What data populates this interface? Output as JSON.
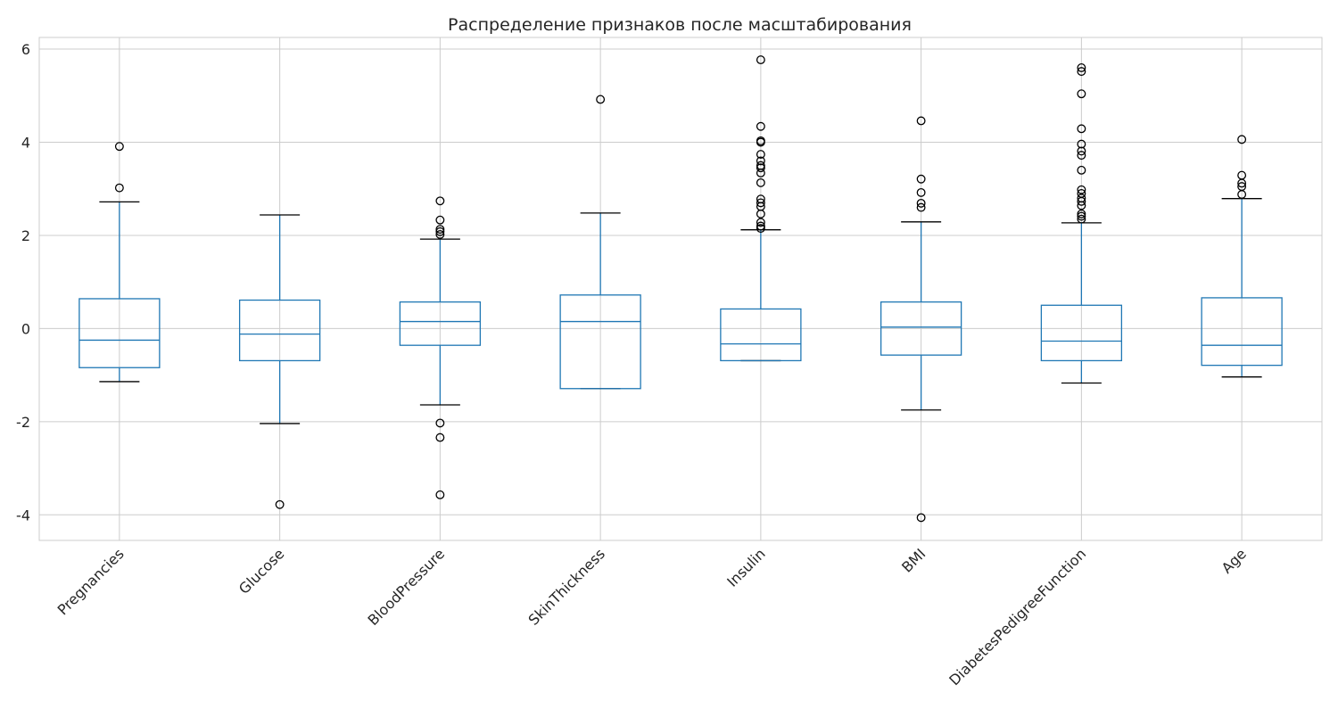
{
  "chart_data": {
    "type": "box",
    "title": "Распределение признаков после масштабирования",
    "xlabel": "",
    "ylabel": "",
    "ylim": [
      -4.55,
      6.25
    ],
    "yticks": [
      -4,
      -2,
      0,
      2,
      4,
      6
    ],
    "ytick_labels": [
      "-4",
      "-2",
      "0",
      "2",
      "4",
      "6"
    ],
    "grid": true,
    "categories": [
      "Pregnancies",
      "Glucose",
      "BloodPressure",
      "SkinThickness",
      "Insulin",
      "BMI",
      "DiabetesPedigreeFunction",
      "Age"
    ],
    "boxes": [
      {
        "name": "Pregnancies",
        "whisker_low": -1.14,
        "q1": -0.84,
        "median": -0.25,
        "q3": 0.64,
        "whisker_high": 2.72,
        "outliers": [
          3.02,
          3.91
        ]
      },
      {
        "name": "Glucose",
        "whisker_low": -2.04,
        "q1": -0.69,
        "median": -0.12,
        "q3": 0.61,
        "whisker_high": 2.44,
        "outliers": [
          -3.78
        ]
      },
      {
        "name": "BloodPressure",
        "whisker_low": -1.64,
        "q1": -0.36,
        "median": 0.15,
        "q3": 0.57,
        "whisker_high": 1.92,
        "outliers": [
          2.02,
          2.08,
          2.13,
          2.33,
          2.74,
          -2.03,
          -2.34,
          -3.57
        ]
      },
      {
        "name": "SkinThickness",
        "whisker_low": -1.29,
        "q1": -1.29,
        "median": 0.15,
        "q3": 0.72,
        "whisker_high": 2.48,
        "outliers": [
          4.92
        ]
      },
      {
        "name": "Insulin",
        "whisker_low": -0.69,
        "q1": -0.69,
        "median": -0.33,
        "q3": 0.42,
        "whisker_high": 2.12,
        "outliers": [
          2.15,
          2.2,
          2.28,
          2.46,
          2.62,
          2.7,
          2.78,
          3.13,
          3.34,
          3.45,
          3.5,
          3.6,
          3.74,
          4.0,
          4.03,
          4.34,
          5.77
        ]
      },
      {
        "name": "BMI",
        "whisker_low": -1.75,
        "q1": -0.57,
        "median": 0.03,
        "q3": 0.57,
        "whisker_high": 2.29,
        "outliers": [
          2.6,
          2.69,
          2.92,
          3.21,
          4.46,
          -4.06
        ]
      },
      {
        "name": "DiabetesPedigreeFunction",
        "whisker_low": -1.17,
        "q1": -0.69,
        "median": -0.27,
        "q3": 0.5,
        "whisker_high": 2.27,
        "outliers": [
          2.35,
          2.41,
          2.46,
          2.64,
          2.73,
          2.8,
          2.9,
          2.98,
          3.4,
          3.72,
          3.81,
          3.96,
          4.29,
          5.04,
          5.52,
          5.6
        ]
      },
      {
        "name": "Age",
        "whisker_low": -1.04,
        "q1": -0.79,
        "median": -0.36,
        "q3": 0.66,
        "whisker_high": 2.79,
        "outliers": [
          2.88,
          3.05,
          3.12,
          3.29,
          4.06
        ]
      }
    ],
    "colors": {
      "box": "#1f77b4",
      "whisker_cap": "#000000",
      "outlier": "#000000",
      "grid": "#cccccc",
      "frame": "#cccccc"
    }
  }
}
